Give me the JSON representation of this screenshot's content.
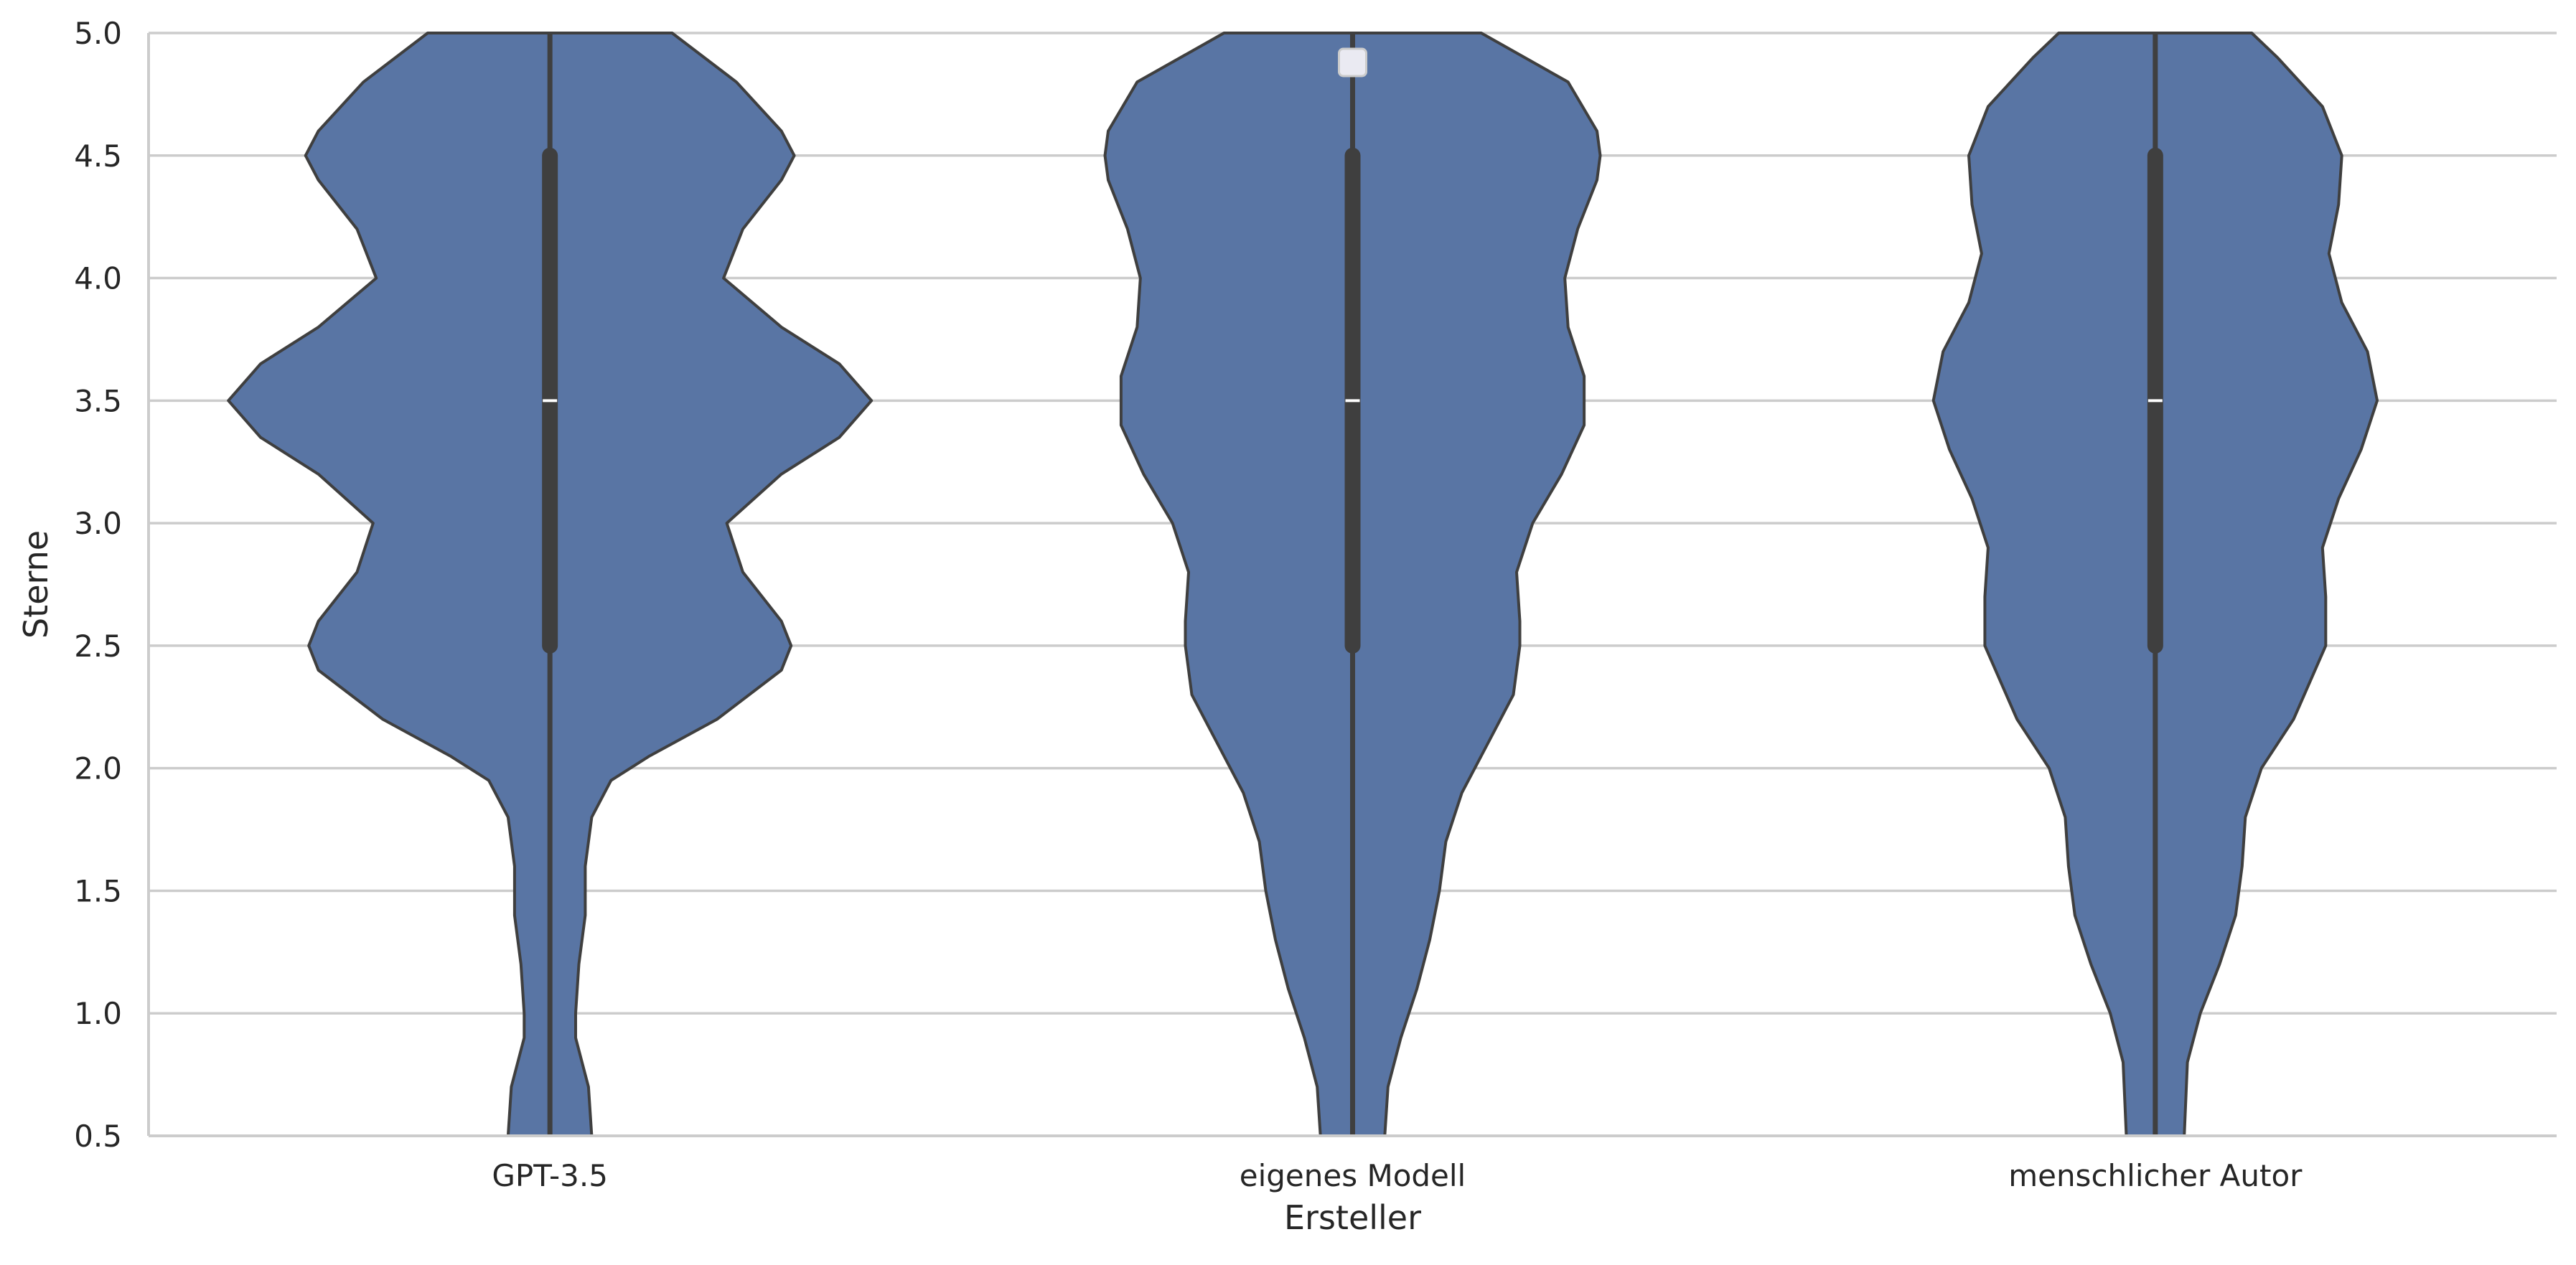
{
  "chart_data": {
    "type": "violin",
    "xlabel": "Ersteller",
    "ylabel": "Sterne",
    "ylim": [
      0.5,
      5.0
    ],
    "yticks": [
      "0.5",
      "1.0",
      "1.5",
      "2.0",
      "2.5",
      "3.0",
      "3.5",
      "4.0",
      "4.5",
      "5.0"
    ],
    "grid": "horizontal",
    "legend": "empty, top-center",
    "colors": {
      "violin_fill": "#5975a4",
      "violin_edge": "#3f3f3f",
      "box": "#3f3f3f",
      "median": "#ffffff"
    },
    "categories": [
      "GPT-3.5",
      "eigenes Modell",
      "menschlicher Autor"
    ],
    "violins": [
      {
        "category": "GPT-3.5",
        "median": 3.5,
        "q1": 2.5,
        "q3": 4.5,
        "min": 0.5,
        "max": 5.0,
        "density": [
          [
            0.5,
            0.13
          ],
          [
            0.7,
            0.12
          ],
          [
            0.9,
            0.08
          ],
          [
            1.0,
            0.08
          ],
          [
            1.2,
            0.09
          ],
          [
            1.4,
            0.11
          ],
          [
            1.6,
            0.11
          ],
          [
            1.8,
            0.13
          ],
          [
            1.95,
            0.19
          ],
          [
            2.05,
            0.31
          ],
          [
            2.2,
            0.52
          ],
          [
            2.4,
            0.72
          ],
          [
            2.5,
            0.75
          ],
          [
            2.6,
            0.72
          ],
          [
            2.8,
            0.6
          ],
          [
            3.0,
            0.55
          ],
          [
            3.2,
            0.72
          ],
          [
            3.35,
            0.9
          ],
          [
            3.5,
            1.0
          ],
          [
            3.65,
            0.9
          ],
          [
            3.8,
            0.72
          ],
          [
            4.0,
            0.54
          ],
          [
            4.2,
            0.6
          ],
          [
            4.4,
            0.72
          ],
          [
            4.5,
            0.76
          ],
          [
            4.6,
            0.72
          ],
          [
            4.8,
            0.58
          ],
          [
            5.0,
            0.38
          ]
        ]
      },
      {
        "category": "eigenes Modell",
        "median": 3.5,
        "q1": 2.5,
        "q3": 4.5,
        "min": 0.5,
        "max": 5.0,
        "density": [
          [
            0.5,
            0.1
          ],
          [
            0.7,
            0.11
          ],
          [
            0.9,
            0.15
          ],
          [
            1.1,
            0.2
          ],
          [
            1.3,
            0.24
          ],
          [
            1.5,
            0.27
          ],
          [
            1.7,
            0.29
          ],
          [
            1.9,
            0.34
          ],
          [
            2.1,
            0.42
          ],
          [
            2.3,
            0.5
          ],
          [
            2.5,
            0.52
          ],
          [
            2.6,
            0.52
          ],
          [
            2.8,
            0.51
          ],
          [
            3.0,
            0.56
          ],
          [
            3.2,
            0.65
          ],
          [
            3.4,
            0.72
          ],
          [
            3.6,
            0.72
          ],
          [
            3.8,
            0.67
          ],
          [
            4.0,
            0.66
          ],
          [
            4.2,
            0.7
          ],
          [
            4.4,
            0.76
          ],
          [
            4.5,
            0.77
          ],
          [
            4.6,
            0.76
          ],
          [
            4.8,
            0.67
          ],
          [
            5.0,
            0.4
          ]
        ]
      },
      {
        "category": "menschlicher Autor",
        "median": 3.5,
        "q1": 2.5,
        "q3": 4.5,
        "min": 0.5,
        "max": 5.0,
        "density": [
          [
            0.5,
            0.09
          ],
          [
            0.8,
            0.1
          ],
          [
            1.0,
            0.14
          ],
          [
            1.2,
            0.2
          ],
          [
            1.4,
            0.25
          ],
          [
            1.6,
            0.27
          ],
          [
            1.8,
            0.28
          ],
          [
            2.0,
            0.33
          ],
          [
            2.2,
            0.43
          ],
          [
            2.5,
            0.53
          ],
          [
            2.7,
            0.53
          ],
          [
            2.9,
            0.52
          ],
          [
            3.1,
            0.57
          ],
          [
            3.3,
            0.64
          ],
          [
            3.5,
            0.69
          ],
          [
            3.7,
            0.66
          ],
          [
            3.9,
            0.58
          ],
          [
            4.1,
            0.54
          ],
          [
            4.3,
            0.57
          ],
          [
            4.5,
            0.58
          ],
          [
            4.7,
            0.52
          ],
          [
            4.9,
            0.38
          ],
          [
            5.0,
            0.3
          ]
        ]
      }
    ]
  }
}
